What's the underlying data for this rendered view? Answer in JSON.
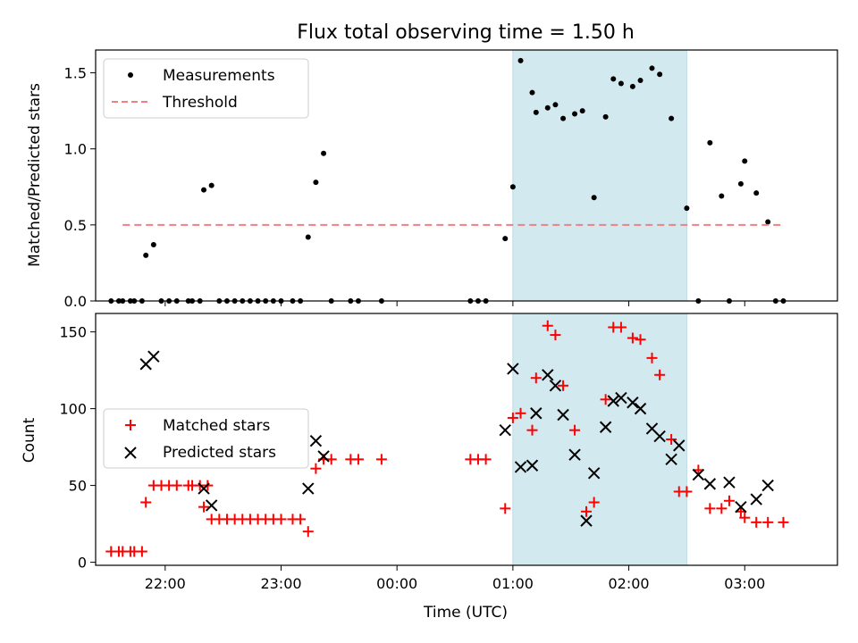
{
  "chart_data": [
    {
      "type": "scatter",
      "title": "Flux total observing time = 1.50 h",
      "ylabel": "Matched/Predicted stars",
      "xlabel": "",
      "xlim": [
        "21:24",
        "03:48"
      ],
      "ylim": [
        0,
        1.65
      ],
      "yticks": [
        0,
        0.5,
        1.0,
        1.5
      ],
      "ytick_labels": [
        "0.0",
        "0.5",
        "1.0",
        "1.5"
      ],
      "grid": false,
      "legend": "top-left",
      "shaded_interval": {
        "start": "01:00",
        "end": "02:30",
        "color": "#d3e9f0"
      },
      "series": [
        {
          "name": "Measurements",
          "marker": "dot",
          "color": "#000000",
          "points": [
            [
              "21:32",
              0
            ],
            [
              "21:36",
              0
            ],
            [
              "21:38",
              0
            ],
            [
              "21:42",
              0
            ],
            [
              "21:44",
              0
            ],
            [
              "21:48",
              0
            ],
            [
              "21:50",
              0.3
            ],
            [
              "21:54",
              0.37
            ],
            [
              "21:58",
              0
            ],
            [
              "22:02",
              0
            ],
            [
              "22:06",
              0
            ],
            [
              "22:12",
              0
            ],
            [
              "22:14",
              0
            ],
            [
              "22:18",
              0
            ],
            [
              "22:20",
              0.73
            ],
            [
              "22:24",
              0.76
            ],
            [
              "22:28",
              0
            ],
            [
              "22:32",
              0
            ],
            [
              "22:36",
              0
            ],
            [
              "22:40",
              0
            ],
            [
              "22:44",
              0
            ],
            [
              "22:48",
              0
            ],
            [
              "22:52",
              0
            ],
            [
              "22:56",
              0
            ],
            [
              "23:00",
              0
            ],
            [
              "23:06",
              0
            ],
            [
              "23:10",
              0
            ],
            [
              "23:14",
              0.42
            ],
            [
              "23:18",
              0.78
            ],
            [
              "23:22",
              0.97
            ],
            [
              "23:26",
              0
            ],
            [
              "23:36",
              0
            ],
            [
              "23:40",
              0
            ],
            [
              "23:52",
              0
            ],
            [
              "00:38",
              0
            ],
            [
              "00:42",
              0
            ],
            [
              "00:46",
              0
            ],
            [
              "00:56",
              0.41
            ],
            [
              "01:00",
              0.75
            ],
            [
              "01:04",
              1.58
            ],
            [
              "01:10",
              1.37
            ],
            [
              "01:12",
              1.24
            ],
            [
              "01:18",
              1.27
            ],
            [
              "01:22",
              1.29
            ],
            [
              "01:26",
              1.2
            ],
            [
              "01:32",
              1.23
            ],
            [
              "01:36",
              1.25
            ],
            [
              "01:42",
              0.68
            ],
            [
              "01:48",
              1.21
            ],
            [
              "01:52",
              1.46
            ],
            [
              "01:56",
              1.43
            ],
            [
              "02:02",
              1.41
            ],
            [
              "02:06",
              1.45
            ],
            [
              "02:12",
              1.53
            ],
            [
              "02:16",
              1.49
            ],
            [
              "02:22",
              1.2
            ],
            [
              "02:30",
              0.61
            ],
            [
              "02:36",
              0
            ],
            [
              "02:42",
              1.04
            ],
            [
              "02:48",
              0.69
            ],
            [
              "02:52",
              0
            ],
            [
              "02:58",
              0.77
            ],
            [
              "03:00",
              0.92
            ],
            [
              "03:06",
              0.71
            ],
            [
              "03:12",
              0.52
            ],
            [
              "03:16",
              0
            ],
            [
              "03:20",
              0
            ]
          ]
        },
        {
          "name": "Threshold",
          "style": "dashed",
          "color": "#f08080",
          "points": [
            [
              "21:38",
              0.5
            ],
            [
              "03:20",
              0.5
            ]
          ]
        }
      ]
    },
    {
      "type": "scatter",
      "title": "",
      "ylabel": "Count",
      "xlabel": "Time (UTC)",
      "xlim": [
        "21:24",
        "03:48"
      ],
      "xticks": [
        "22:00",
        "23:00",
        "00:00",
        "01:00",
        "02:00",
        "03:00"
      ],
      "ylim": [
        -2,
        162
      ],
      "yticks": [
        0,
        50,
        100,
        150
      ],
      "ytick_labels": [
        "0",
        "50",
        "100",
        "150"
      ],
      "grid": false,
      "legend": "center-left",
      "shaded_interval": {
        "start": "01:00",
        "end": "02:30",
        "color": "#d3e9f0"
      },
      "series": [
        {
          "name": "Matched stars",
          "marker": "plus",
          "color": "#ff0000",
          "points": [
            [
              "21:32",
              7
            ],
            [
              "21:36",
              7
            ],
            [
              "21:38",
              7
            ],
            [
              "21:42",
              7
            ],
            [
              "21:44",
              7
            ],
            [
              "21:48",
              7
            ],
            [
              "21:50",
              39
            ],
            [
              "21:54",
              50
            ],
            [
              "21:58",
              50
            ],
            [
              "22:02",
              50
            ],
            [
              "22:06",
              50
            ],
            [
              "22:12",
              50
            ],
            [
              "22:14",
              50
            ],
            [
              "22:18",
              50
            ],
            [
              "22:22",
              50
            ],
            [
              "22:20",
              36
            ],
            [
              "22:24",
              28
            ],
            [
              "22:28",
              28
            ],
            [
              "22:32",
              28
            ],
            [
              "22:36",
              28
            ],
            [
              "22:40",
              28
            ],
            [
              "22:44",
              28
            ],
            [
              "22:48",
              28
            ],
            [
              "22:52",
              28
            ],
            [
              "22:56",
              28
            ],
            [
              "23:00",
              28
            ],
            [
              "23:06",
              28
            ],
            [
              "23:10",
              28
            ],
            [
              "23:14",
              20
            ],
            [
              "23:18",
              61
            ],
            [
              "23:22",
              67
            ],
            [
              "23:26",
              67
            ],
            [
              "23:36",
              67
            ],
            [
              "23:40",
              67
            ],
            [
              "23:52",
              67
            ],
            [
              "00:38",
              67
            ],
            [
              "00:42",
              67
            ],
            [
              "00:46",
              67
            ],
            [
              "00:56",
              35
            ],
            [
              "01:00",
              94
            ],
            [
              "01:04",
              97
            ],
            [
              "01:10",
              86
            ],
            [
              "01:12",
              120
            ],
            [
              "01:18",
              154
            ],
            [
              "01:22",
              148
            ],
            [
              "01:26",
              115
            ],
            [
              "01:32",
              86
            ],
            [
              "01:38",
              33
            ],
            [
              "01:42",
              39
            ],
            [
              "01:48",
              106
            ],
            [
              "01:52",
              153
            ],
            [
              "01:56",
              153
            ],
            [
              "02:02",
              146
            ],
            [
              "02:06",
              145
            ],
            [
              "02:12",
              133
            ],
            [
              "02:16",
              122
            ],
            [
              "02:22",
              80
            ],
            [
              "02:26",
              46
            ],
            [
              "02:30",
              46
            ],
            [
              "02:36",
              60
            ],
            [
              "02:42",
              35
            ],
            [
              "02:48",
              35
            ],
            [
              "02:52",
              40
            ],
            [
              "02:58",
              33
            ],
            [
              "03:00",
              29
            ],
            [
              "03:06",
              26
            ],
            [
              "03:12",
              26
            ],
            [
              "03:20",
              26
            ]
          ]
        },
        {
          "name": "Predicted stars",
          "marker": "x",
          "color": "#000000",
          "points": [
            [
              "21:50",
              129
            ],
            [
              "21:54",
              134
            ],
            [
              "22:20",
              48
            ],
            [
              "22:24",
              37
            ],
            [
              "23:14",
              48
            ],
            [
              "23:18",
              79
            ],
            [
              "23:22",
              69
            ],
            [
              "00:56",
              86
            ],
            [
              "01:00",
              126
            ],
            [
              "01:04",
              62
            ],
            [
              "01:10",
              63
            ],
            [
              "01:12",
              97
            ],
            [
              "01:18",
              122
            ],
            [
              "01:22",
              115
            ],
            [
              "01:26",
              96
            ],
            [
              "01:32",
              70
            ],
            [
              "01:38",
              27
            ],
            [
              "01:42",
              58
            ],
            [
              "01:48",
              88
            ],
            [
              "01:52",
              105
            ],
            [
              "01:56",
              107
            ],
            [
              "02:02",
              104
            ],
            [
              "02:06",
              100
            ],
            [
              "02:12",
              87
            ],
            [
              "02:16",
              82
            ],
            [
              "02:22",
              67
            ],
            [
              "02:26",
              76
            ],
            [
              "02:36",
              57
            ],
            [
              "02:42",
              51
            ],
            [
              "02:52",
              52
            ],
            [
              "02:58",
              36
            ],
            [
              "03:06",
              41
            ],
            [
              "03:12",
              50
            ]
          ]
        }
      ]
    }
  ]
}
